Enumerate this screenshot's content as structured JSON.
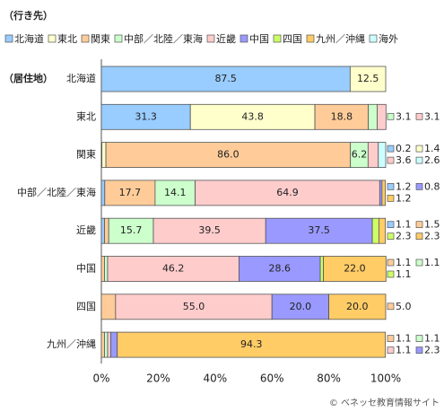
{
  "chart_data": {
    "type": "stacked-bar-horizontal",
    "legend_title": "（行き先）",
    "y_label": "（居住地）",
    "source": "© ベネッセ教育情報サイト",
    "categories": [
      "北海道",
      "東北",
      "関東",
      "中部／北陸／東海",
      "近畿",
      "中国",
      "四国",
      "九州／沖縄"
    ],
    "xlim": [
      0,
      100
    ],
    "xticks": [
      {
        "value": 0,
        "label": "0%"
      },
      {
        "value": 20,
        "label": "20%"
      },
      {
        "value": 40,
        "label": "40%"
      },
      {
        "value": 60,
        "label": "60%"
      },
      {
        "value": 80,
        "label": "80%"
      },
      {
        "value": 100,
        "label": "100%"
      }
    ],
    "series": [
      {
        "name": "北海道",
        "color": "#99ccff",
        "values": [
          87.5,
          31.3,
          0.2,
          1.2,
          1.1,
          0,
          0,
          0
        ],
        "value_labels": [
          "87.5",
          "31.3",
          "0.2",
          "1.2",
          "1.1",
          null,
          null,
          null
        ]
      },
      {
        "name": "東北",
        "color": "#ffffcc",
        "values": [
          12.5,
          43.8,
          1.4,
          0,
          0,
          0,
          0,
          0
        ],
        "value_labels": [
          "12.5",
          "43.8",
          "1.4",
          null,
          null,
          null,
          null,
          null
        ]
      },
      {
        "name": "関東",
        "color": "#ffcc99",
        "values": [
          0,
          18.8,
          86.0,
          17.7,
          1.5,
          1.1,
          5.0,
          1.1
        ],
        "value_labels": [
          null,
          "18.8",
          "86.0",
          "17.7",
          "1.5",
          "1.1",
          "5.0",
          "1.1"
        ]
      },
      {
        "name": "中部／北陸／東海",
        "color": "#ccffcc",
        "values": [
          0,
          3.1,
          6.2,
          14.1,
          15.7,
          1.1,
          0,
          1.1
        ],
        "value_labels": [
          null,
          "3.1",
          "6.2",
          "14.1",
          "15.7",
          "1.1",
          null,
          "1.1"
        ]
      },
      {
        "name": "近畿",
        "color": "#ffcccc",
        "values": [
          0,
          3.1,
          3.6,
          64.9,
          39.5,
          46.2,
          55.0,
          1.1
        ],
        "value_labels": [
          null,
          "3.1",
          "3.6",
          "64.9",
          "39.5",
          "46.2",
          "55.0",
          "1.1"
        ]
      },
      {
        "name": "中国",
        "color": "#9999ff",
        "values": [
          0,
          0,
          0,
          0.8,
          37.5,
          28.6,
          20.0,
          2.3
        ],
        "value_labels": [
          null,
          null,
          null,
          "0.8",
          "37.5",
          "28.6",
          "20.0",
          "2.3"
        ]
      },
      {
        "name": "四国",
        "color": "#ccff66",
        "values": [
          0,
          0,
          0,
          0,
          2.3,
          1.1,
          0,
          0
        ],
        "value_labels": [
          null,
          null,
          null,
          null,
          "2.3",
          "1.1",
          null,
          null
        ]
      },
      {
        "name": "九州／沖縄",
        "color": "#ffcc66",
        "values": [
          0,
          0,
          0,
          1.2,
          2.3,
          22.0,
          20.0,
          94.3
        ],
        "value_labels": [
          null,
          null,
          null,
          "1.2",
          "2.3",
          "22.0",
          "20.0",
          "94.3"
        ]
      },
      {
        "name": "海外",
        "color": "#ccffff",
        "values": [
          0,
          0,
          2.6,
          0,
          0,
          0,
          0,
          0
        ],
        "value_labels": [
          null,
          null,
          "2.6",
          null,
          null,
          null,
          null,
          null
        ]
      }
    ]
  }
}
